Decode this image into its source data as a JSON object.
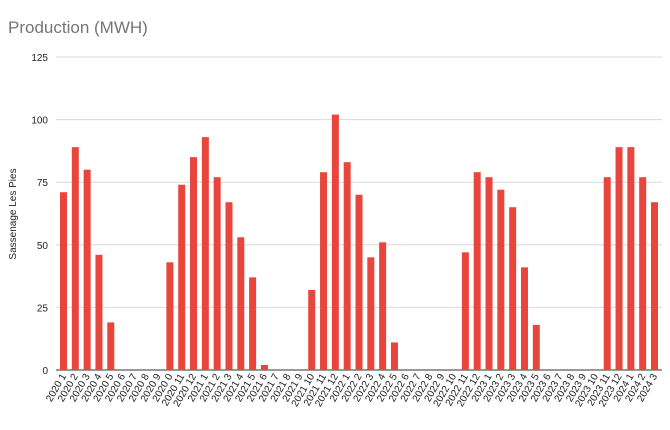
{
  "chart_data": {
    "type": "bar",
    "title": "Production (MWH)",
    "xlabel": "",
    "ylabel": "Sassenage Les Pies",
    "ylim": [
      0,
      125
    ],
    "yticks": [
      0,
      25,
      50,
      75,
      100,
      125
    ],
    "grid": true,
    "legend": "none",
    "bar_color": "#e8463c",
    "categories": [
      "2020 1",
      "2020 2",
      "2020 3",
      "2020 4",
      "2020 5",
      "2020 6",
      "2020 7",
      "2020 8",
      "2020 9",
      "2020 0",
      "2020 11",
      "2020 12",
      "2021 1",
      "2021 2",
      "2021 3",
      "2021 4",
      "2021 5",
      "2021 6",
      "2021 7",
      "2021 8",
      "2021 9",
      "2021 10",
      "2021 11",
      "2021 12",
      "2022 1",
      "2022 2",
      "2022 3",
      "2022 4",
      "2022 5",
      "2022 6",
      "2022 7",
      "2022 8",
      "2022 9",
      "2022 10",
      "2022 11",
      "2022 12",
      "2023 1",
      "2023 2",
      "2023 3",
      "2023 4",
      "2023 5",
      "2023 6",
      "2023 7",
      "2023 8",
      "2023 9",
      "2023 10",
      "2023 11",
      "2023 12",
      "2024 1",
      "2024 2",
      "2024 3"
    ],
    "values": [
      71,
      89,
      80,
      46,
      19,
      0,
      0,
      0,
      0,
      43,
      74,
      85,
      93,
      77,
      67,
      53,
      37,
      2,
      0,
      0,
      0,
      32,
      79,
      102,
      83,
      70,
      45,
      51,
      11,
      0,
      0,
      0,
      0,
      0,
      47,
      79,
      77,
      72,
      65,
      41,
      18,
      0,
      0,
      0,
      0,
      0,
      77,
      89,
      89,
      77,
      67
    ]
  }
}
